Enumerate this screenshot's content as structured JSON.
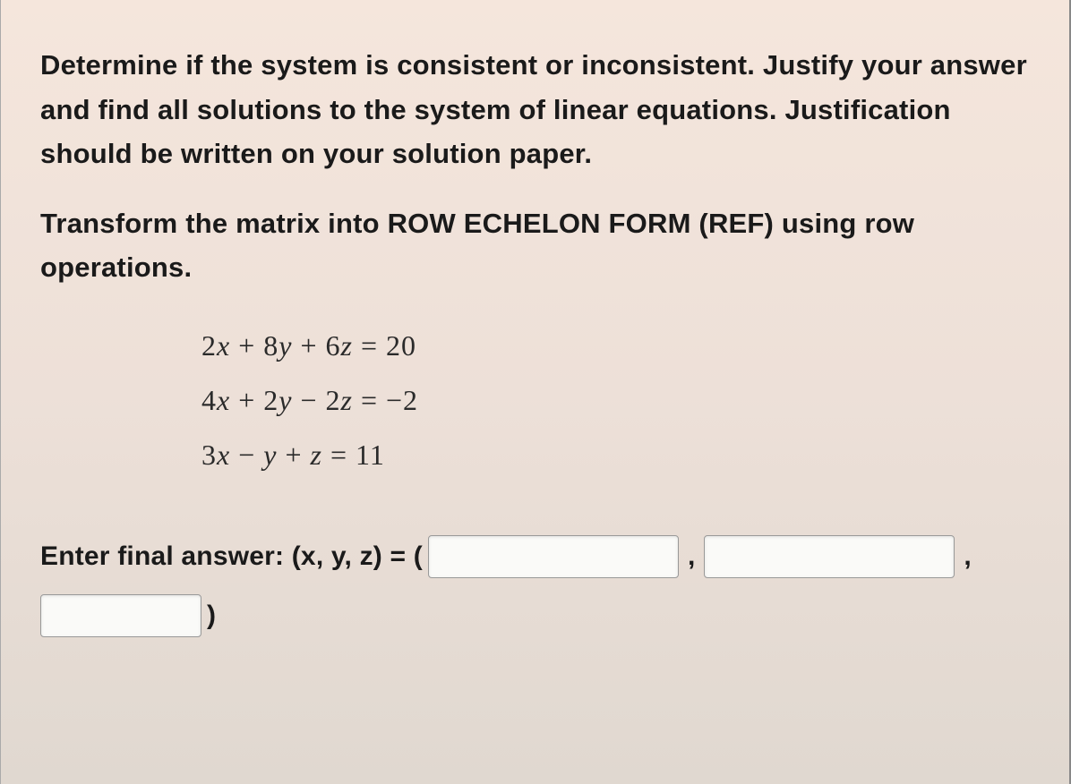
{
  "question": {
    "instruction": "Determine if the system is consistent or inconsistent. Justify your answer and find all solutions to the system of linear equations. Justification should be written on your solution paper.",
    "transform": "Transform the matrix into ROW ECHELON FORM (REF) using row operations."
  },
  "equations": {
    "eq1": "2x + 8y + 6z = 20",
    "eq2": "4x + 2y − 2z = −2",
    "eq3": "3x − y + z = 11"
  },
  "answer": {
    "label": "Enter final answer: (x, y, z) = (",
    "comma": ",",
    "close_paren": ")",
    "x_value": "",
    "y_value": "",
    "z_value": ""
  },
  "colors": {
    "text": "#1a1a1a",
    "equation_text": "#2a2a2a",
    "bg_top": "#f5e6dc",
    "bg_mid": "#ede0d8",
    "bg_bot": "#e0d8d0",
    "input_border": "#999999",
    "input_bg": "#fafaf8"
  },
  "typography": {
    "instruction_fontsize": 31,
    "instruction_weight": 600,
    "equation_fontsize": 32,
    "equation_family": "Times New Roman",
    "answer_fontsize": 30
  }
}
